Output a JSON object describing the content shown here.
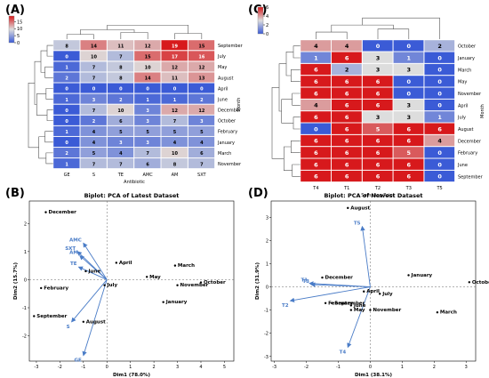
{
  "chart_data": [
    {
      "panel_label": "(A)",
      "type": "heatmap",
      "title": "",
      "xlabel": "Antibiotic",
      "ylabel": "Month",
      "columns": [
        "GE",
        "S",
        "TE",
        "AMC",
        "AM",
        "SXT"
      ],
      "rows": [
        "September",
        "July",
        "May",
        "August",
        "April",
        "June",
        "December",
        "October",
        "February",
        "January",
        "March",
        "November"
      ],
      "values": [
        [
          8,
          14,
          11,
          12,
          19,
          15
        ],
        [
          0,
          10,
          7,
          15,
          17,
          16
        ],
        [
          1,
          7,
          8,
          10,
          12,
          12
        ],
        [
          2,
          7,
          8,
          14,
          11,
          13
        ],
        [
          0,
          0,
          0,
          0,
          0,
          0
        ],
        [
          1,
          3,
          2,
          1,
          1,
          2
        ],
        [
          0,
          7,
          10,
          3,
          12,
          12
        ],
        [
          0,
          2,
          6,
          3,
          7,
          3
        ],
        [
          1,
          4,
          5,
          5,
          5,
          5
        ],
        [
          0,
          4,
          3,
          3,
          4,
          4
        ],
        [
          2,
          5,
          4,
          7,
          10,
          6
        ],
        [
          1,
          7,
          7,
          6,
          8,
          7
        ]
      ],
      "colorbar": {
        "min": 0,
        "max": 19,
        "ticks": [
          "0",
          "5",
          "10",
          "15"
        ],
        "low_color": "#3b5bd6",
        "mid_color": "#dddddd",
        "high_color": "#d7191c"
      }
    },
    {
      "panel_label": "(C)",
      "type": "heatmap",
      "title": "",
      "xlabel": "Sampling Point",
      "ylabel": "Month",
      "columns": [
        "T4",
        "T1",
        "T2",
        "T3",
        "T5"
      ],
      "rows": [
        "October",
        "January",
        "March",
        "May",
        "November",
        "April",
        "July",
        "August",
        "December",
        "February",
        "June",
        "September"
      ],
      "values": [
        [
          4,
          4,
          0,
          0,
          2
        ],
        [
          1,
          6,
          3,
          1,
          0
        ],
        [
          6,
          2,
          3,
          3,
          0
        ],
        [
          6,
          6,
          6,
          0,
          0
        ],
        [
          6,
          6,
          6,
          0,
          0
        ],
        [
          4,
          6,
          6,
          3,
          0
        ],
        [
          6,
          6,
          3,
          3,
          1
        ],
        [
          0,
          6,
          5,
          6,
          6
        ],
        [
          6,
          6,
          6,
          6,
          4
        ],
        [
          6,
          6,
          6,
          5,
          0
        ],
        [
          6,
          6,
          6,
          6,
          0
        ],
        [
          6,
          6,
          6,
          6,
          0
        ]
      ],
      "colorbar": {
        "min": 0,
        "max": 6,
        "ticks": [
          "0",
          "2",
          "4",
          "6"
        ],
        "low_color": "#3b5bd6",
        "mid_color": "#dddddd",
        "high_color": "#d7191c"
      }
    },
    {
      "panel_label": "(B)",
      "type": "scatter",
      "title": "Biplot: PCA of Latest Dataset",
      "xlabel": "Dim1 (78.0%)",
      "ylabel": "Dim2 (15.7%)",
      "xlim": [
        -3.3,
        5.4
      ],
      "ylim": [
        -2.9,
        2.8
      ],
      "xticks": [
        -3,
        -2,
        -1,
        0,
        1,
        2,
        3,
        4,
        5
      ],
      "yticks": [
        -2,
        -1,
        0,
        1,
        2
      ],
      "xtick_labels": [
        "-3",
        "-2",
        "-1",
        "0",
        "1",
        "2",
        "3",
        "4",
        "5"
      ],
      "ytick_labels": [
        "-2",
        "-1",
        "0",
        "1",
        "2"
      ],
      "points": [
        {
          "label": "December",
          "x": -2.6,
          "y": 2.4
        },
        {
          "label": "April",
          "x": 0.4,
          "y": 0.6
        },
        {
          "label": "March",
          "x": 2.9,
          "y": 0.5
        },
        {
          "label": "June",
          "x": -0.9,
          "y": 0.3
        },
        {
          "label": "May",
          "x": 1.7,
          "y": 0.1
        },
        {
          "label": "October",
          "x": 4.0,
          "y": -0.1
        },
        {
          "label": "November",
          "x": 3.0,
          "y": -0.2
        },
        {
          "label": "February",
          "x": -2.8,
          "y": -0.3
        },
        {
          "label": "July",
          "x": -0.1,
          "y": -0.2
        },
        {
          "label": "January",
          "x": 2.4,
          "y": -0.8
        },
        {
          "label": "September",
          "x": -3.1,
          "y": -1.3
        },
        {
          "label": "August",
          "x": -1.0,
          "y": -1.5
        }
      ],
      "arrows": [
        {
          "label": "AMC",
          "x": -1.0,
          "y": 1.3
        },
        {
          "label": "SXT",
          "x": -1.25,
          "y": 1.0
        },
        {
          "label": "AM",
          "x": -1.15,
          "y": 0.85
        },
        {
          "label": "TE",
          "x": -1.2,
          "y": 0.45
        },
        {
          "label": "S",
          "x": -1.5,
          "y": -1.5
        },
        {
          "label": "GE",
          "x": -1.0,
          "y": -2.7
        }
      ],
      "arrow_color": "#4a7cc7"
    },
    {
      "panel_label": "(D)",
      "type": "scatter",
      "title": "Biplot: PCA of Newest Dataset",
      "xlabel": "Dim1 (38.1%)",
      "ylabel": "Dim2 (31.9%)",
      "xlim": [
        -3.1,
        3.3
      ],
      "ylim": [
        -3.2,
        3.7
      ],
      "xticks": [
        -3,
        -2,
        -1,
        0,
        1,
        2,
        3
      ],
      "yticks": [
        -3,
        -2,
        -1,
        0,
        1,
        2,
        3
      ],
      "xtick_labels": [
        "-3",
        "-2",
        "-1",
        "0",
        "1",
        "2",
        "3"
      ],
      "ytick_labels": [
        "-3",
        "-2",
        "-1",
        "0",
        "1",
        "2",
        "3"
      ],
      "points": [
        {
          "label": "August",
          "x": -0.7,
          "y": 3.4
        },
        {
          "label": "January",
          "x": 1.2,
          "y": 0.5
        },
        {
          "label": "December",
          "x": -1.5,
          "y": 0.4
        },
        {
          "label": "October",
          "x": 3.1,
          "y": 0.2
        },
        {
          "label": "April",
          "x": -0.2,
          "y": -0.2
        },
        {
          "label": "July",
          "x": 0.3,
          "y": -0.3
        },
        {
          "label": "February",
          "x": -1.4,
          "y": -0.7
        },
        {
          "label": "September",
          "x": -1.2,
          "y": -0.7
        },
        {
          "label": "June",
          "x": -0.6,
          "y": -0.8
        },
        {
          "label": "May",
          "x": -0.6,
          "y": -1.0
        },
        {
          "label": "November",
          "x": 0.0,
          "y": -1.0
        },
        {
          "label": "March",
          "x": 2.1,
          "y": -1.1
        }
      ],
      "arrows": [
        {
          "label": "T5",
          "x": -0.25,
          "y": 2.6
        },
        {
          "label": "T1",
          "x": -1.9,
          "y": 0.15
        },
        {
          "label": "T3",
          "x": -1.85,
          "y": 0.1
        },
        {
          "label": "T2",
          "x": -2.5,
          "y": -0.6
        },
        {
          "label": "T4",
          "x": -0.7,
          "y": -2.6
        }
      ],
      "arrow_color": "#4a7cc7"
    }
  ]
}
